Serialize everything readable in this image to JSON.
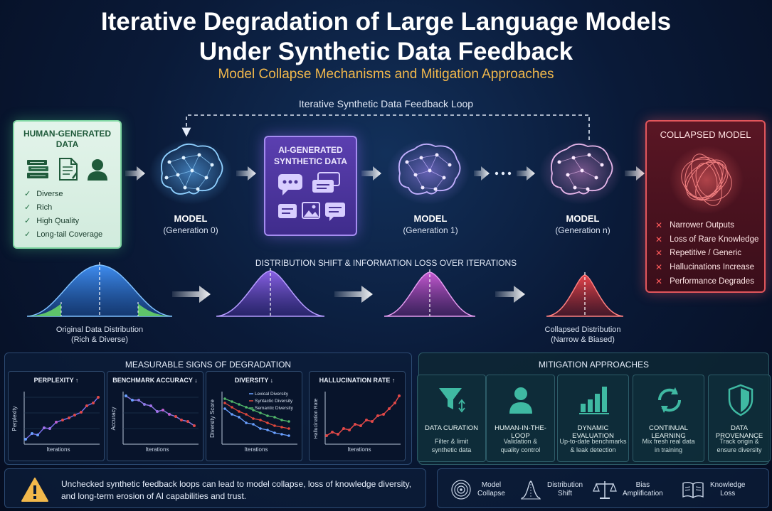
{
  "header": {
    "title_line1": "Iterative Degradation of Large Language Models",
    "title_line2": "Under Synthetic Data Feedback",
    "subtitle": "Model Collapse Mechanisms and Mitigation Approaches"
  },
  "loop_label": "Iterative Synthetic Data Feedback Loop",
  "human_data": {
    "title_line1": "HUMAN-GENERATED",
    "title_line2": "DATA",
    "items": [
      "Diverse",
      "Rich",
      "High Quality",
      "Long-tail Coverage"
    ]
  },
  "ai_data": {
    "title_line1": "AI-GENERATED",
    "title_line2": "SYNTHETIC DATA"
  },
  "models": [
    {
      "label": "MODEL",
      "generation": "(Generation 0)"
    },
    {
      "label": "MODEL",
      "generation": "(Generation 1)"
    },
    {
      "label": "MODEL",
      "generation": "(Generation n)"
    }
  ],
  "collapsed": {
    "title": "COLLAPSED MODEL",
    "items": [
      "Narrower Outputs",
      "Loss of Rare Knowledge",
      "Repetitive / Generic",
      "Hallucinations Increase",
      "Performance Degrades"
    ]
  },
  "distribution": {
    "label": "DISTRIBUTION SHIFT & INFORMATION LOSS OVER ITERATIONS",
    "original_line1": "Original Data Distribution",
    "original_line2": "(Rich & Diverse)",
    "collapsed_line1": "Collapsed Distribution",
    "collapsed_line2": "(Narrow & Biased)"
  },
  "signs": {
    "title": "MEASURABLE SIGNS OF DEGRADATION",
    "charts": [
      {
        "title": "PERPLEXITY ↑",
        "ylabel": "Perplexity",
        "xlabel": "Iterations"
      },
      {
        "title": "BENCHMARK ACCURACY ↓",
        "ylabel": "Accuracy",
        "xlabel": "Iterations"
      },
      {
        "title": "DIVERSITY ↓",
        "ylabel": "Diversity Score",
        "xlabel": "Iterations",
        "legend": [
          "Lexical Diversity",
          "Syntactic Diversity",
          "Semantic Diversity"
        ]
      },
      {
        "title": "HALLUCINATION RATE ↑",
        "ylabel": "Hallucination Rate",
        "xlabel": "Iterations"
      }
    ]
  },
  "mitigation": {
    "title": "MITIGATION APPROACHES",
    "items": [
      {
        "name": "DATA CURATION",
        "desc1": "Filter & limit",
        "desc2": "synthetic data",
        "icon": "funnel-icon"
      },
      {
        "name": "HUMAN-IN-THE-LOOP",
        "desc1": "Validation &",
        "desc2": "quality control",
        "icon": "person-icon"
      },
      {
        "name": "DYNAMIC EVALUATION",
        "desc1": "Up-to-date benchmarks",
        "desc2": "& leak detection",
        "icon": "bar-chart-icon"
      },
      {
        "name": "CONTINUAL LEARNING",
        "desc1": "Mix fresh real data",
        "desc2": "in training",
        "icon": "refresh-icon"
      },
      {
        "name": "DATA PROVENANCE",
        "desc1": "Track origin &",
        "desc2": "ensure diversity",
        "icon": "shield-icon"
      }
    ]
  },
  "warning": {
    "line1": "Unchecked synthetic feedback loops can lead to model collapse, loss of knowledge diversity,",
    "line2": "and long-term erosion of AI capabilities and trust."
  },
  "legend": [
    {
      "line1": "Model",
      "line2": "Collapse",
      "icon": "target-icon"
    },
    {
      "line1": "Distribution",
      "line2": "Shift",
      "icon": "bell-curve-icon"
    },
    {
      "line1": "Bias",
      "line2": "Amplification",
      "icon": "scales-icon"
    },
    {
      "line1": "Knowledge",
      "line2": "Loss",
      "icon": "book-icon"
    }
  ],
  "colors": {
    "accent_orange": "#f2b84b",
    "human_green": "#7fd6a2",
    "ai_purple": "#a58cf0",
    "collapse_red": "#e2565c",
    "teal": "#3fb9a2"
  }
}
